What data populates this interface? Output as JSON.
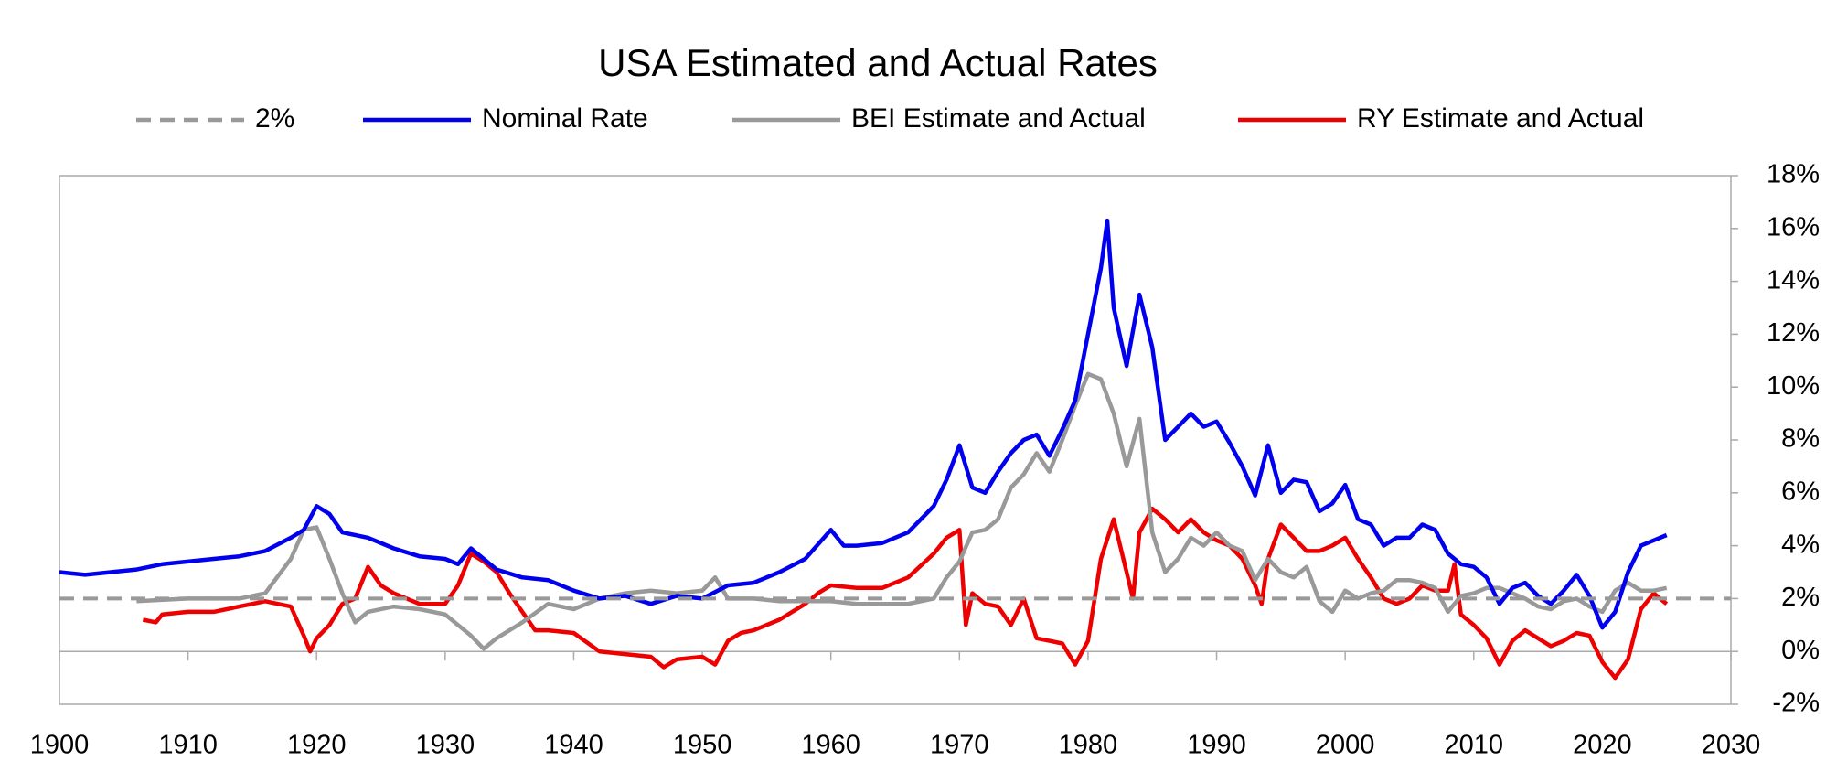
{
  "chart_data": {
    "type": "line",
    "title": "USA Estimated and Actual Rates",
    "xlim": [
      1900,
      2030
    ],
    "xticks": [
      1900,
      1910,
      1920,
      1930,
      1940,
      1950,
      1960,
      1970,
      1980,
      1990,
      2000,
      2010,
      2020,
      2030
    ],
    "ylim": [
      -2,
      18
    ],
    "yticks": [
      {
        "value": -2,
        "label": "-2%"
      },
      {
        "value": 0,
        "label": "0%"
      },
      {
        "value": 2,
        "label": "2%"
      },
      {
        "value": 4,
        "label": "4%"
      },
      {
        "value": 6,
        "label": "6%"
      },
      {
        "value": 8,
        "label": "8%"
      },
      {
        "value": 10,
        "label": "10%"
      },
      {
        "value": 12,
        "label": "12%"
      },
      {
        "value": 14,
        "label": "14%"
      },
      {
        "value": 16,
        "label": "16%"
      },
      {
        "value": 18,
        "label": "18%"
      }
    ],
    "yaxis_position": "right",
    "legend": "top",
    "series": [
      {
        "name": "2%",
        "color": "#999999",
        "dash": true,
        "x": [
          1900,
          2030
        ],
        "values": [
          2,
          2
        ]
      },
      {
        "name": "Nominal Rate",
        "color": "#0000ee",
        "dash": false,
        "x": [
          1900,
          1902,
          1904,
          1906,
          1908,
          1910,
          1912,
          1914,
          1916,
          1918,
          1919,
          1920,
          1921,
          1922,
          1924,
          1926,
          1928,
          1930,
          1931,
          1932,
          1933,
          1934,
          1936,
          1938,
          1940,
          1942,
          1944,
          1946,
          1948,
          1950,
          1952,
          1954,
          1956,
          1958,
          1960,
          1961,
          1962,
          1964,
          1966,
          1968,
          1969,
          1970,
          1971,
          1972,
          1973,
          1974,
          1975,
          1976,
          1977,
          1978,
          1979,
          1980,
          1981,
          1981.5,
          1982,
          1983,
          1984,
          1985,
          1986,
          1987,
          1988,
          1989,
          1990,
          1991,
          1992,
          1993,
          1994,
          1995,
          1996,
          1997,
          1998,
          1999,
          2000,
          2001,
          2002,
          2003,
          2004,
          2005,
          2006,
          2007,
          2008,
          2009,
          2010,
          2011,
          2012,
          2013,
          2014,
          2015,
          2016,
          2017,
          2018,
          2019,
          2020,
          2021,
          2022,
          2023,
          2024,
          2025
        ],
        "values": [
          3.0,
          2.9,
          3.0,
          3.1,
          3.3,
          3.4,
          3.5,
          3.6,
          3.8,
          4.3,
          4.6,
          5.5,
          5.2,
          4.5,
          4.3,
          3.9,
          3.6,
          3.5,
          3.3,
          3.9,
          3.5,
          3.1,
          2.8,
          2.7,
          2.3,
          2.0,
          2.1,
          1.8,
          2.1,
          2.0,
          2.5,
          2.6,
          3.0,
          3.5,
          4.6,
          4.0,
          4.0,
          4.1,
          4.5,
          5.5,
          6.5,
          7.8,
          6.2,
          6.0,
          6.8,
          7.5,
          8.0,
          8.2,
          7.4,
          8.4,
          9.5,
          12.0,
          14.5,
          16.3,
          13.0,
          10.8,
          13.5,
          11.5,
          8.0,
          8.5,
          9.0,
          8.5,
          8.7,
          7.9,
          7.0,
          5.9,
          7.8,
          6.0,
          6.5,
          6.4,
          5.3,
          5.6,
          6.3,
          5.0,
          4.8,
          4.0,
          4.3,
          4.3,
          4.8,
          4.6,
          3.7,
          3.3,
          3.2,
          2.8,
          1.8,
          2.4,
          2.6,
          2.1,
          1.8,
          2.3,
          2.9,
          2.1,
          0.9,
          1.5,
          3.0,
          4.0,
          4.2,
          4.4
        ]
      },
      {
        "name": "BEI Estimate and Actual",
        "color": "#999999",
        "dash": false,
        "x": [
          1906,
          1910,
          1914,
          1916,
          1918,
          1919,
          1920,
          1921,
          1922,
          1923,
          1924,
          1926,
          1928,
          1930,
          1932,
          1933,
          1934,
          1936,
          1938,
          1940,
          1942,
          1944,
          1946,
          1948,
          1950,
          1951,
          1952,
          1954,
          1956,
          1958,
          1960,
          1962,
          1964,
          1966,
          1968,
          1969,
          1970,
          1971,
          1972,
          1973,
          1974,
          1975,
          1976,
          1977,
          1978,
          1979,
          1980,
          1981,
          1982,
          1983,
          1984,
          1985,
          1986,
          1987,
          1988,
          1989,
          1990,
          1991,
          1992,
          1993,
          1994,
          1995,
          1996,
          1997,
          1998,
          1999,
          2000,
          2001,
          2002,
          2003,
          2004,
          2005,
          2006,
          2007,
          2008,
          2009,
          2010,
          2011,
          2012,
          2013,
          2014,
          2015,
          2016,
          2017,
          2018,
          2019,
          2020,
          2021,
          2022,
          2023,
          2024,
          2025
        ],
        "values": [
          1.9,
          2.0,
          2.0,
          2.2,
          3.5,
          4.6,
          4.7,
          3.5,
          2.2,
          1.1,
          1.5,
          1.7,
          1.6,
          1.4,
          0.6,
          0.1,
          0.5,
          1.1,
          1.8,
          1.6,
          2.0,
          2.2,
          2.3,
          2.2,
          2.3,
          2.8,
          2.0,
          2.0,
          1.9,
          1.9,
          1.9,
          1.8,
          1.8,
          1.8,
          2.0,
          2.8,
          3.4,
          4.5,
          4.6,
          5.0,
          6.2,
          6.7,
          7.5,
          6.8,
          8.0,
          9.3,
          10.5,
          10.3,
          9.0,
          7.0,
          8.8,
          4.5,
          3.0,
          3.5,
          4.3,
          4.0,
          4.5,
          4.0,
          3.8,
          2.7,
          3.5,
          3.0,
          2.8,
          3.2,
          1.9,
          1.5,
          2.3,
          2.0,
          2.2,
          2.3,
          2.7,
          2.7,
          2.6,
          2.4,
          1.5,
          2.1,
          2.2,
          2.4,
          2.4,
          2.2,
          2.0,
          1.7,
          1.6,
          1.9,
          2.0,
          1.7,
          1.5,
          2.3,
          2.6,
          2.3,
          2.3,
          2.4
        ]
      },
      {
        "name": "RY Estimate and Actual",
        "color": "#ee0000",
        "dash": false,
        "x": [
          1906.5,
          1907.5,
          1908,
          1910,
          1912,
          1914,
          1916,
          1918,
          1919,
          1919.5,
          1920,
          1921,
          1922,
          1923,
          1924,
          1925,
          1926,
          1928,
          1930,
          1931,
          1932,
          1933,
          1934,
          1935,
          1936,
          1937,
          1938,
          1940,
          1942,
          1944,
          1946,
          1947,
          1948,
          1950,
          1951,
          1952,
          1953,
          1954,
          1956,
          1958,
          1959,
          1960,
          1962,
          1964,
          1966,
          1968,
          1969,
          1970,
          1970.5,
          1971,
          1972,
          1973,
          1974,
          1975,
          1976,
          1977,
          1978,
          1979,
          1980,
          1981,
          1982,
          1983,
          1983.5,
          1984,
          1985,
          1986,
          1987,
          1988,
          1989,
          1990,
          1991,
          1992,
          1993,
          1993.5,
          1994,
          1995,
          1996,
          1997,
          1998,
          1999,
          2000,
          2001,
          2002,
          2003,
          2004,
          2005,
          2006,
          2007,
          2008,
          2008.5,
          2009,
          2010,
          2011,
          2012,
          2013,
          2014,
          2015,
          2016,
          2017,
          2018,
          2019,
          2020,
          2021,
          2022,
          2023,
          2024,
          2025
        ],
        "values": [
          1.2,
          1.1,
          1.4,
          1.5,
          1.5,
          1.7,
          1.9,
          1.7,
          0.6,
          0.0,
          0.5,
          1.0,
          1.8,
          2.0,
          3.2,
          2.5,
          2.2,
          1.8,
          1.8,
          2.5,
          3.7,
          3.4,
          3.0,
          2.2,
          1.5,
          0.8,
          0.8,
          0.7,
          0.0,
          -0.1,
          -0.2,
          -0.6,
          -0.3,
          -0.2,
          -0.5,
          0.4,
          0.7,
          0.8,
          1.2,
          1.8,
          2.2,
          2.5,
          2.4,
          2.4,
          2.8,
          3.7,
          4.3,
          4.6,
          1.0,
          2.2,
          1.8,
          1.7,
          1.0,
          2.0,
          0.5,
          0.4,
          0.3,
          -0.5,
          0.4,
          3.5,
          5.0,
          3.0,
          2.0,
          4.5,
          5.4,
          5.0,
          4.5,
          5.0,
          4.5,
          4.2,
          4.0,
          3.5,
          2.5,
          1.8,
          3.5,
          4.8,
          4.3,
          3.8,
          3.8,
          4.0,
          4.3,
          3.5,
          2.8,
          2.0,
          1.8,
          2.0,
          2.5,
          2.3,
          2.3,
          3.3,
          1.4,
          1.0,
          0.5,
          -0.5,
          0.4,
          0.8,
          0.5,
          0.2,
          0.4,
          0.7,
          0.6,
          -0.4,
          -1.0,
          -0.3,
          1.6,
          2.2,
          1.8
        ]
      }
    ]
  }
}
